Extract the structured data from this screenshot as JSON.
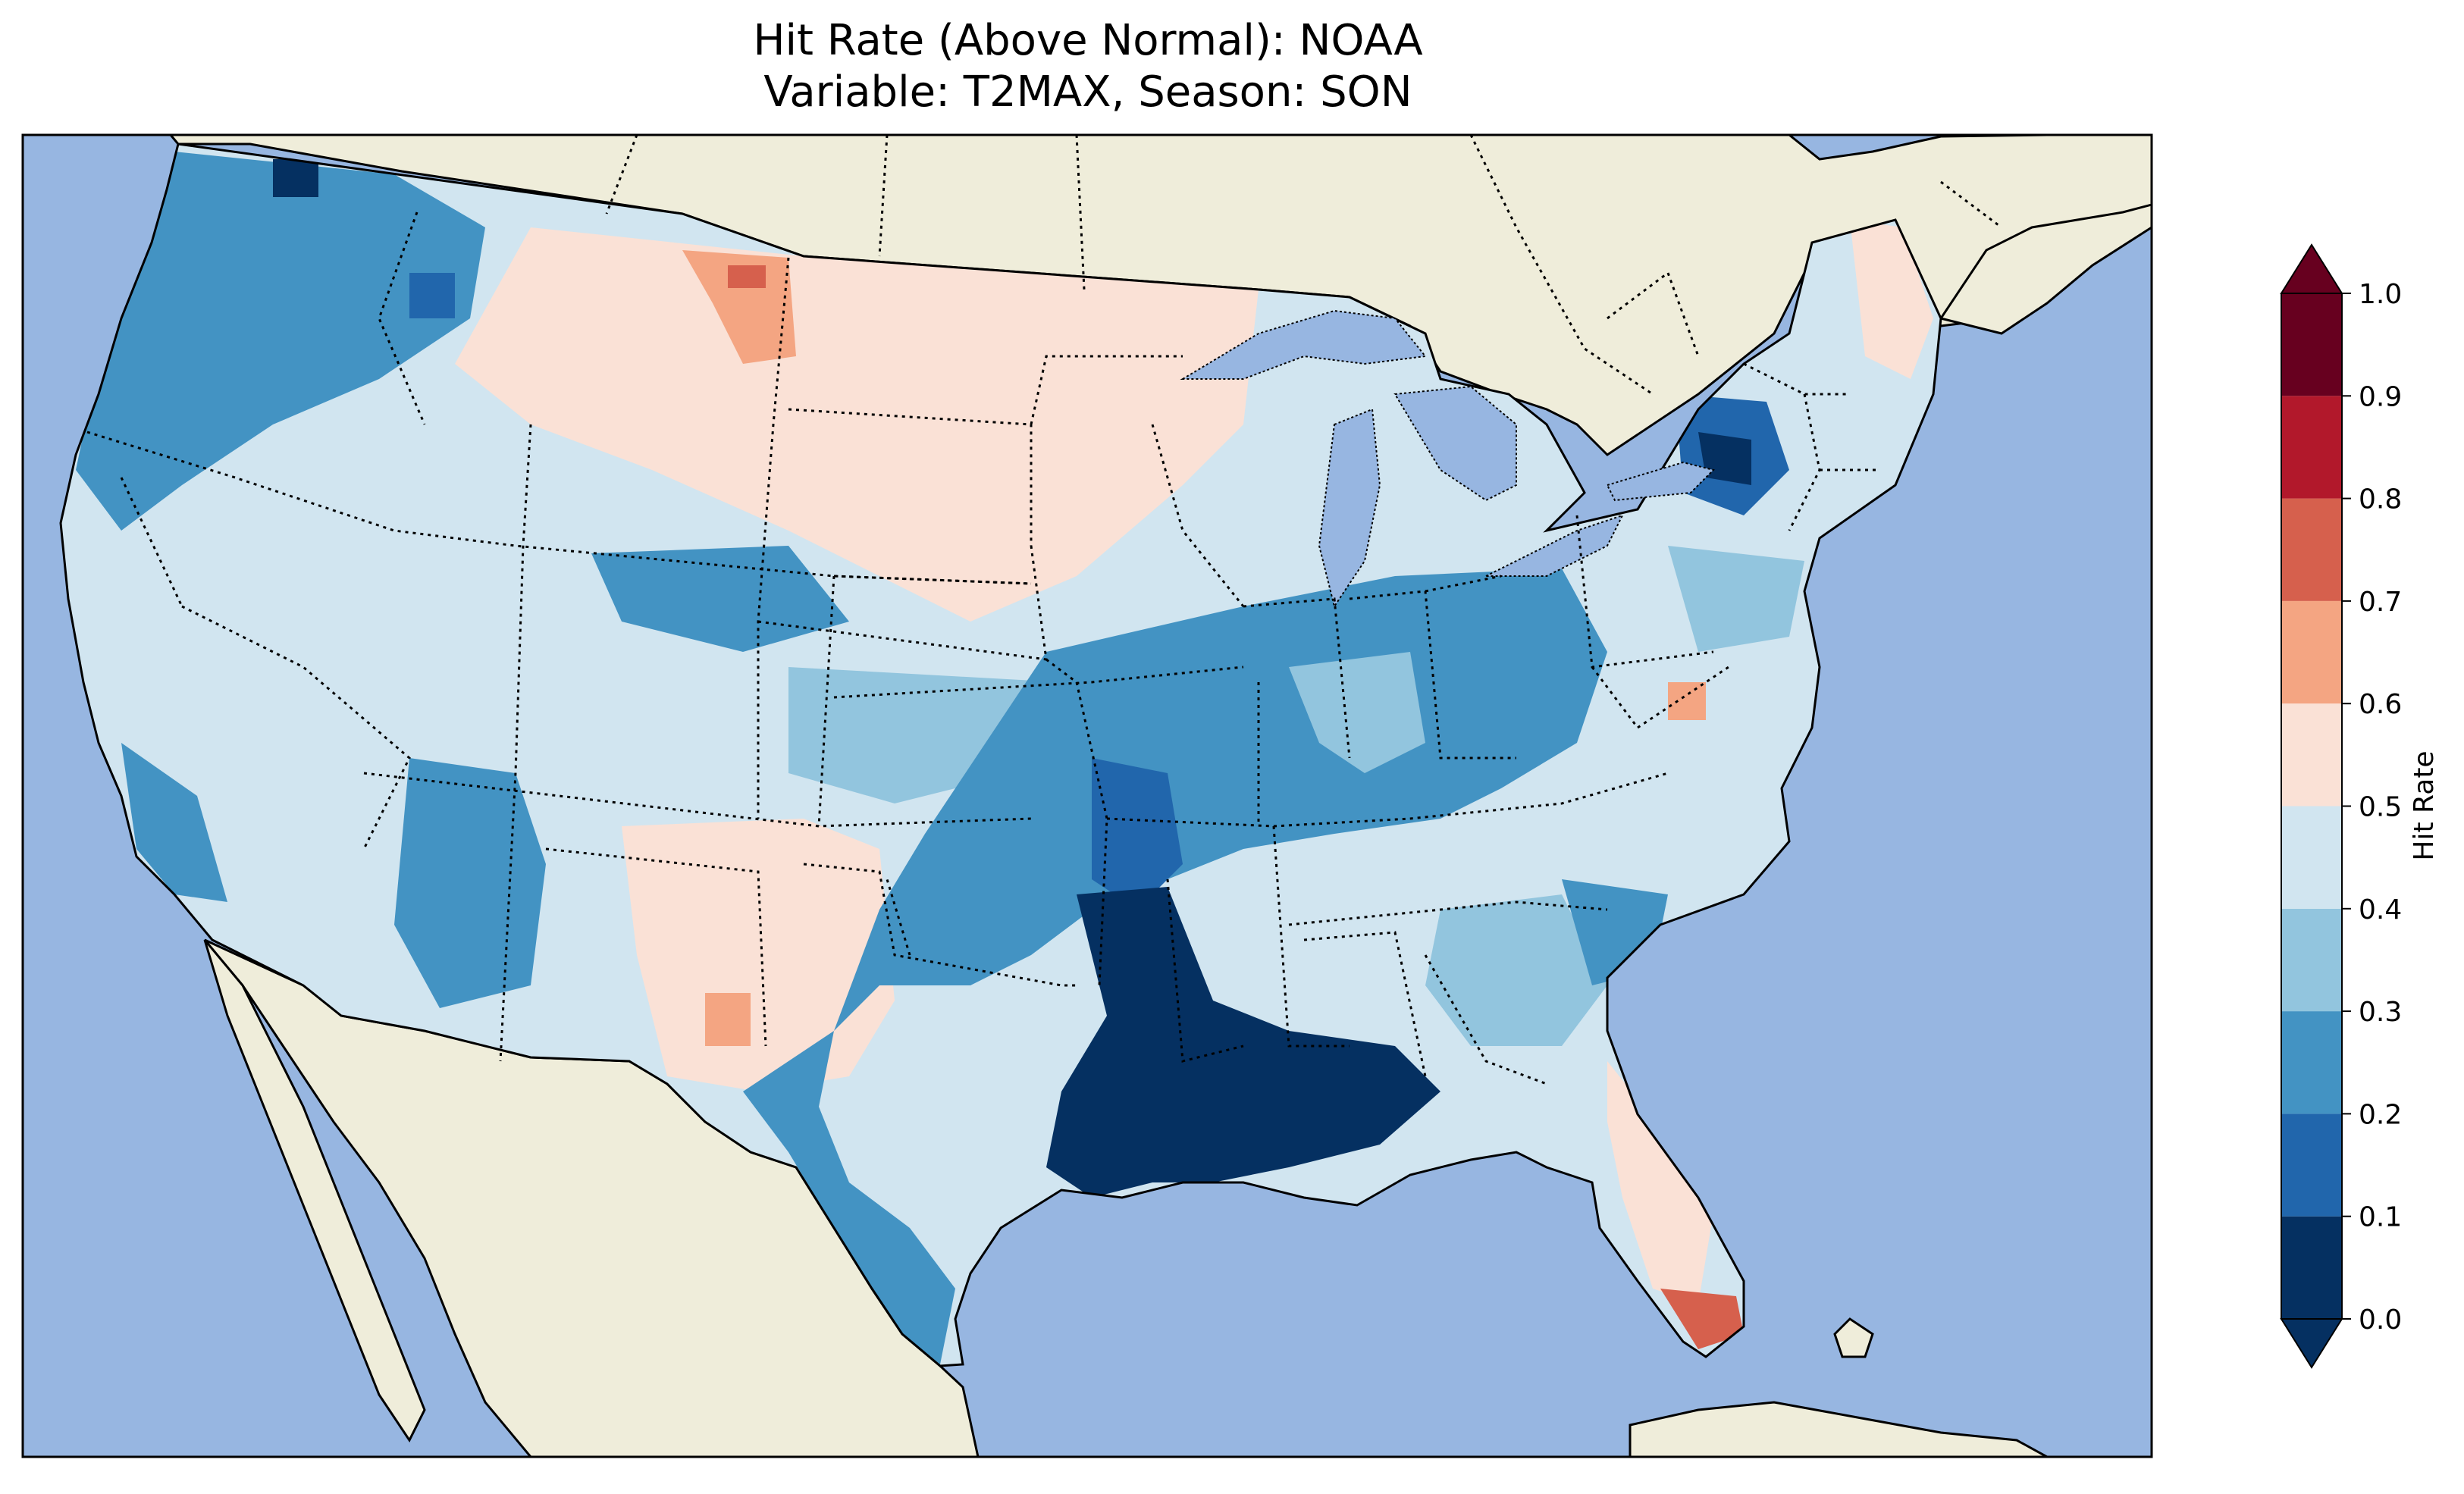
{
  "title": {
    "line1": "Hit Rate (Above Normal): NOAA",
    "line2": "Variable: T2MAX, Season: SON"
  },
  "colors": {
    "ocean": "#97b6e1",
    "land": "#efedda",
    "boundary": "#000000"
  },
  "colorbar": {
    "label": "Hit Rate",
    "ticks": [
      "0.0",
      "0.1",
      "0.2",
      "0.3",
      "0.4",
      "0.5",
      "0.6",
      "0.7",
      "0.8",
      "0.9",
      "1.0"
    ],
    "bins": [
      {
        "from": 0.0,
        "to": 0.1,
        "color": "#053061"
      },
      {
        "from": 0.1,
        "to": 0.2,
        "color": "#2166ac"
      },
      {
        "from": 0.2,
        "to": 0.3,
        "color": "#4393c3"
      },
      {
        "from": 0.3,
        "to": 0.4,
        "color": "#92c5de"
      },
      {
        "from": 0.4,
        "to": 0.5,
        "color": "#d1e5f0"
      },
      {
        "from": 0.5,
        "to": 0.6,
        "color": "#fae1d6"
      },
      {
        "from": 0.6,
        "to": 0.7,
        "color": "#f4a582"
      },
      {
        "from": 0.7,
        "to": 0.8,
        "color": "#d6604d"
      },
      {
        "from": 0.8,
        "to": 0.9,
        "color": "#b2182b"
      },
      {
        "from": 0.9,
        "to": 1.0,
        "color": "#67001f"
      }
    ],
    "under_color": "#053061",
    "over_color": "#67001f",
    "extend": "both"
  }
}
